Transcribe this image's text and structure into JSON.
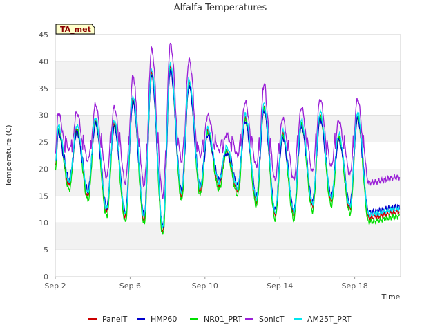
{
  "chart_data": {
    "type": "line",
    "title": "Alfalfa Temperatures",
    "xlabel": "Time",
    "ylabel": "Temperature (C)",
    "badge": "TA_met",
    "xlim": [
      2.0,
      20.45
    ],
    "ylim": [
      0,
      45
    ],
    "yticks": [
      0,
      5,
      10,
      15,
      20,
      25,
      30,
      35,
      40,
      45
    ],
    "xticks": [
      {
        "x": 2,
        "label": "Sep 2"
      },
      {
        "x": 6,
        "label": "Sep 6"
      },
      {
        "x": 10,
        "label": "Sep 10"
      },
      {
        "x": 14,
        "label": "Sep 14"
      },
      {
        "x": 18,
        "label": "Sep 18"
      }
    ],
    "grid": true,
    "legend_position": "bottom",
    "daily_extremes": {
      "days": [
        2,
        3,
        4,
        5,
        6,
        7,
        8,
        9,
        10,
        11,
        12,
        13,
        14,
        15,
        16,
        17,
        18,
        19
      ],
      "max_day": [
        27.5,
        27.5,
        29,
        28.5,
        33,
        38,
        39,
        36,
        27,
        23.5,
        29.5,
        31.5,
        26.5,
        28.5,
        30,
        26,
        30,
        null
      ],
      "min_prev_night": [
        null,
        17,
        15,
        12,
        11,
        10.5,
        8.5,
        15,
        16,
        17,
        16,
        14,
        11.5,
        11.5,
        13,
        14,
        12.5,
        11
      ]
    },
    "series": [
      {
        "name": "PanelT",
        "color": "#cc0000"
      },
      {
        "name": "HMP60",
        "color": "#0000cc"
      },
      {
        "name": "NR01_PRT",
        "color": "#00e000"
      },
      {
        "name": "SonicT",
        "color": "#9a1fd6"
      },
      {
        "name": "AM25T_PRT",
        "color": "#00e5ee"
      }
    ]
  }
}
